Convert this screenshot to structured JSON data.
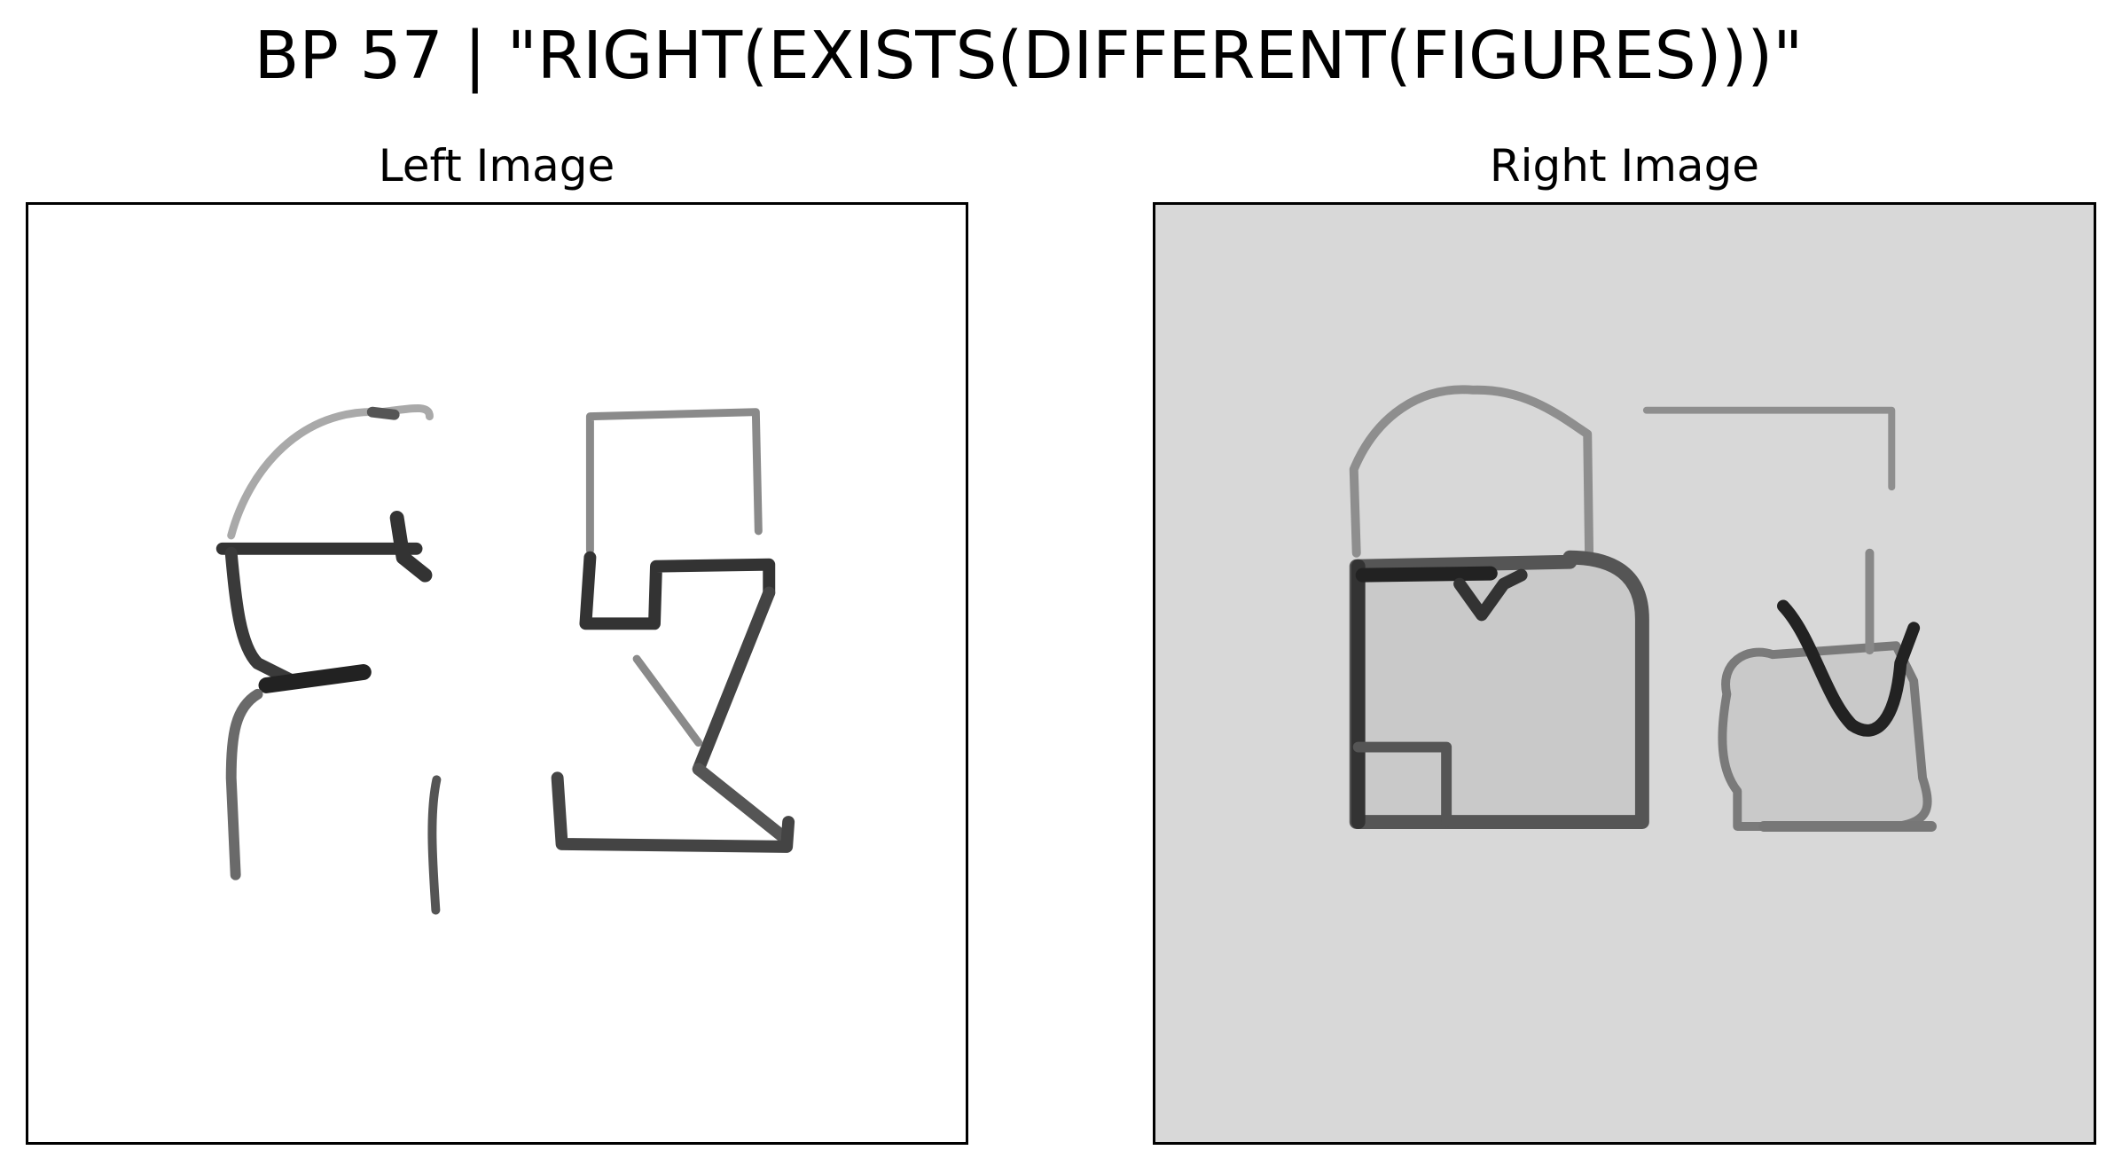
{
  "title": "BP 57 | \"RIGHT(EXISTS(DIFFERENT(FIGURES)))\"",
  "panels": {
    "left": {
      "title": "Left Image",
      "background": "#ffffff"
    },
    "right": {
      "title": "Right Image",
      "background": "#d8d8d8"
    }
  },
  "colors": {
    "stroke_dark": "#2b2b2b",
    "stroke_light": "#9a9a9a",
    "fill_gray": "#c9c9c9"
  }
}
